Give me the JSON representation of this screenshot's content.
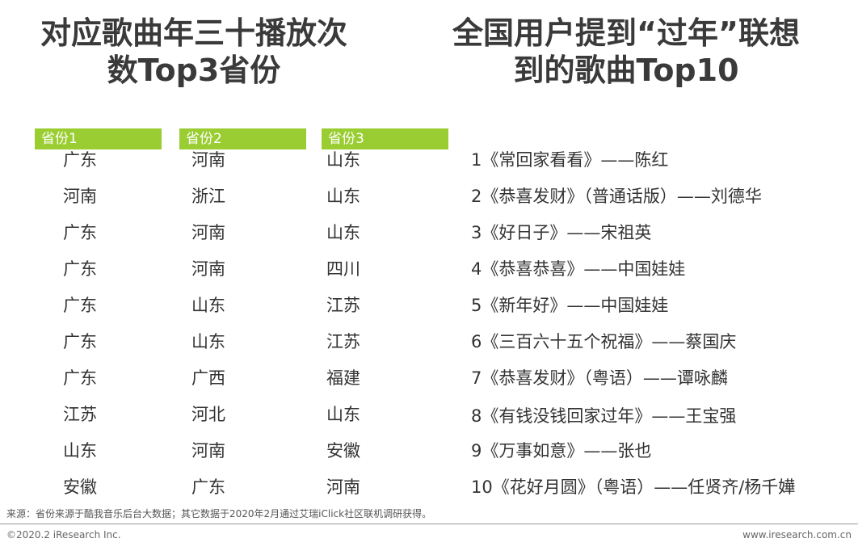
{
  "titles": {
    "left_line1": "对应歌曲年三十播放次",
    "left_line2": "数Top3省份",
    "right_line1": "全国用户提到“过年”联想",
    "right_line2": "到的歌曲Top10"
  },
  "headers": {
    "province1": "省份1",
    "province2": "省份2",
    "province3": "省份3"
  },
  "rows": [
    {
      "p1": "广东",
      "p2": "河南",
      "p3": "山东",
      "song": "1《常回家看看》——陈红"
    },
    {
      "p1": "河南",
      "p2": "浙江",
      "p3": "山东",
      "song": "2《恭喜发财》（普通话版）——刘德华"
    },
    {
      "p1": "广东",
      "p2": "河南",
      "p3": "山东",
      "song": "3《好日子》——宋祖英"
    },
    {
      "p1": "广东",
      "p2": "河南",
      "p3": "四川",
      "song": "4《恭喜恭喜》——中国娃娃"
    },
    {
      "p1": "广东",
      "p2": "山东",
      "p3": "江苏",
      "song": "5《新年好》——中国娃娃"
    },
    {
      "p1": "广东",
      "p2": "山东",
      "p3": "江苏",
      "song": "6《三百六十五个祝福》——蔡国庆"
    },
    {
      "p1": "广东",
      "p2": "广西",
      "p3": "福建",
      "song": "7《恭喜发财》（粤语）——谭咏麟"
    },
    {
      "p1": "江苏",
      "p2": "河北",
      "p3": "山东",
      "song": "8《有钱没钱回家过年》——王宝强"
    },
    {
      "p1": "山东",
      "p2": "河南",
      "p3": "安徽",
      "song": "9《万事如意》——张也"
    },
    {
      "p1": "安徽",
      "p2": "广东",
      "p3": "河南",
      "song": "10《花好月圆》（粤语）——任贤齐/杨千嬅"
    }
  ],
  "source": "来源：省份来源于酷我音乐后台大数据；其它数据于2020年2月通过艾瑞iClick社区联机调研获得。",
  "footer": {
    "left": "©2020.2 iResearch Inc.",
    "right": "www.iresearch.com.cn"
  },
  "colors": {
    "header_green": "#9acd32",
    "title_text": "#3a3a3a"
  }
}
